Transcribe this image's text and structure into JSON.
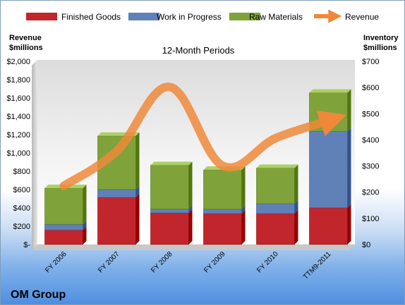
{
  "chart_data": {
    "type": "bar",
    "title": "12-Month Periods",
    "company": "OM Group",
    "categories": [
      "FY 2006",
      "FY 2007",
      "FY 2008",
      "FY 2009",
      "FY 2010",
      "TTM9-2011"
    ],
    "stacked_series_axis": "right",
    "series": [
      {
        "name": "Finished Goods",
        "type": "bar",
        "axis": "right",
        "color": "#c0262c",
        "values": [
          55,
          180,
          120,
          118,
          118,
          140
        ]
      },
      {
        "name": "Work in Progress",
        "type": "bar",
        "axis": "right",
        "color": "#6080b8",
        "values": [
          22,
          30,
          15,
          17,
          38,
          292
        ]
      },
      {
        "name": "Raw Materials",
        "type": "bar",
        "axis": "right",
        "color": "#7fa33a",
        "values": [
          138,
          205,
          168,
          150,
          136,
          148
        ]
      },
      {
        "name": "Revenue",
        "type": "line",
        "axis": "left",
        "color": "#f0883a",
        "values": [
          640,
          1020,
          1720,
          860,
          1160,
          1350
        ]
      }
    ],
    "left_axis": {
      "label": "Revenue $millions",
      "label_lines": [
        "Revenue",
        "$millions"
      ],
      "ylim": [
        0,
        2000
      ],
      "ticks": [
        0,
        200,
        400,
        600,
        800,
        1000,
        1200,
        1400,
        1600,
        1800,
        2000
      ],
      "tick_labels": [
        "$-",
        "$200",
        "$400",
        "$600",
        "$800",
        "$1,000",
        "$1,200",
        "$1,400",
        "$1,600",
        "$1,800",
        "$2,000"
      ]
    },
    "right_axis": {
      "label": "Inventory $millions",
      "label_lines": [
        "Inventory",
        "$millions"
      ],
      "ylim": [
        0,
        700
      ],
      "ticks": [
        0,
        100,
        200,
        300,
        400,
        500,
        600,
        700
      ],
      "tick_labels": [
        "$0",
        "$100",
        "$200",
        "$300",
        "$400",
        "$500",
        "$600",
        "$700"
      ]
    },
    "legend": {
      "position": "top",
      "entries": [
        "Finished Goods",
        "Work in Progress",
        "Raw Materials",
        "Revenue"
      ]
    },
    "grid": false
  }
}
